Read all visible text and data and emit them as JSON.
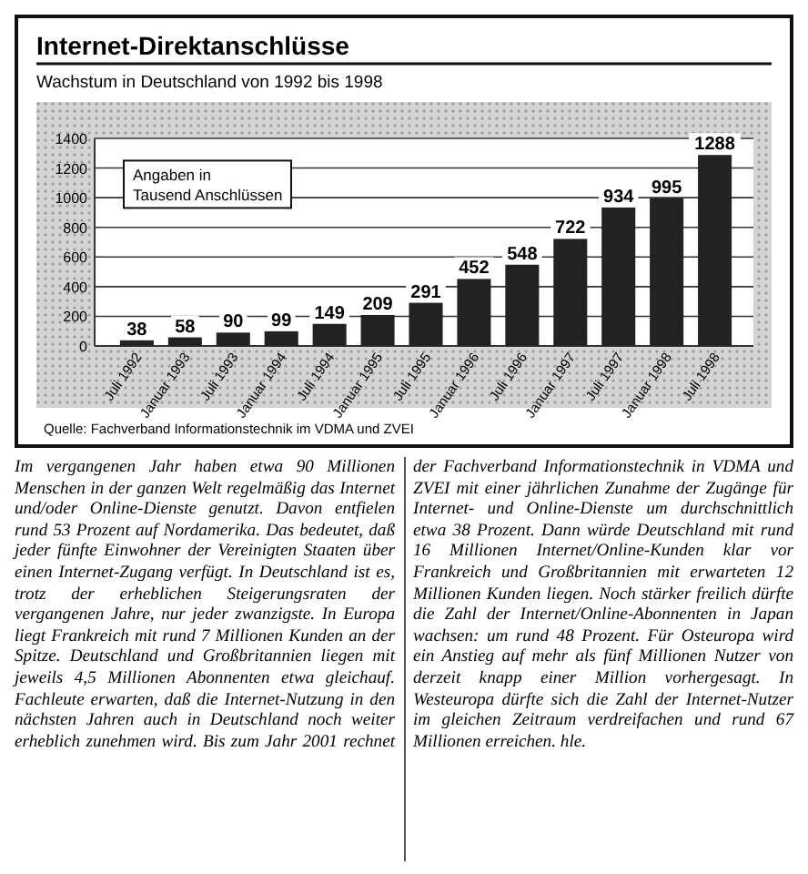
{
  "chart_data": {
    "type": "bar",
    "title": "Internet-Direktanschlüsse",
    "subtitle": "Wachstum in Deutschland von 1992 bis 1998",
    "categories": [
      "Juli 1992",
      "Januar 1993",
      "Juli 1993",
      "Januar 1994",
      "Juli 1994",
      "Januar 1995",
      "Juli 1995",
      "Januar 1996",
      "Juli 1996",
      "Januar 1997",
      "Juli 1997",
      "Januar 1998",
      "Juli 1998"
    ],
    "values": [
      38,
      58,
      90,
      99,
      149,
      209,
      291,
      452,
      548,
      722,
      934,
      995,
      1288
    ],
    "color": "#222222",
    "ylim": [
      0,
      1400
    ],
    "yticks": [
      0,
      200,
      400,
      600,
      800,
      1000,
      1200,
      1400
    ],
    "grid": "y",
    "data_labels": true,
    "annotations": [
      "Angaben in Tausend Anschlüssen",
      "Quelle: Fachverband Informationstechnik im VDMA und ZVEI",
      "Im vergangenen Jahr haben etwa 90 Millionen Menschen in der ganzen Welt regelmäßig das Internet und/oder Online-Dienste genutzt. Davon entfielen rund 53 Prozent auf Nordamerika. Das bedeutet, daß jeder fünfte Einwohner der Vereinigten Staaten über einen Internet-Zugang verfügt. In Deutschland ist es, trotz der erheblichen Steigerungsraten der vergangenen Jahre, nur jeder zwanzigste. In Europa liegt Frankreich mit rund 7 Millionen Kunden an der Spitze. Deutschland und Großbritannien liegen mit jeweils 4,5 Millionen Abonnenten etwa gleichauf. Fachleute erwarten, daß die Internet-Nutzung in den nächsten Jahren auch in Deutschland noch weiter erheblich zunehmen wird. Bis zum Jahr 2001 rechnet der Fachverband Informationstechnik in VDMA und ZVEI mit einer jährlichen Zunahme der Zugänge für Internet- und Online-Dienste um durchschnittlich etwa 38 Prozent. Dann würde Deutschland mit rund 16 Millionen Internet/Online-Kunden klar vor Frankreich und Großbritannien mit erwarteten 12 Millionen Kunden liegen. Noch stärker freilich dürfte die Zahl der Internet/Online-Abonnenten in Japan wachsen: um rund 48 Prozent. Für Osteuropa wird ein Anstieg auf mehr als fünf Millionen Nutzer von derzeit knapp einer Million vorhergesagt. In Westeuropa dürfte sich die Zahl der Internet-Nutzer im gleichen Zeitraum verdreifachen und rund 67 Millionen erreichen.",
      "hle."
    ]
  }
}
